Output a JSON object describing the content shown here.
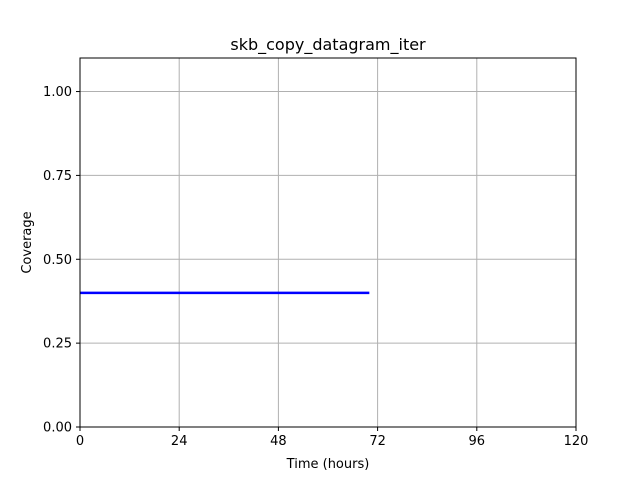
{
  "chart_data": {
    "type": "line",
    "title": "skb_copy_datagram_iter",
    "xlabel": "Time (hours)",
    "ylabel": "Coverage",
    "xlim": [
      0,
      120
    ],
    "ylim": [
      0,
      1.1
    ],
    "xticks": [
      0,
      24,
      48,
      72,
      96,
      120
    ],
    "xtick_labels": [
      "0",
      "24",
      "48",
      "72",
      "96",
      "120"
    ],
    "yticks": [
      0,
      0.25,
      0.5,
      0.75,
      1.0
    ],
    "ytick_labels": [
      "0.00",
      "0.25",
      "0.50",
      "0.75",
      "1.00"
    ],
    "grid": true,
    "legend": null,
    "series": [
      {
        "color": "#0000ff",
        "x": [
          0,
          70
        ],
        "y": [
          0.4,
          0.4
        ]
      }
    ]
  }
}
